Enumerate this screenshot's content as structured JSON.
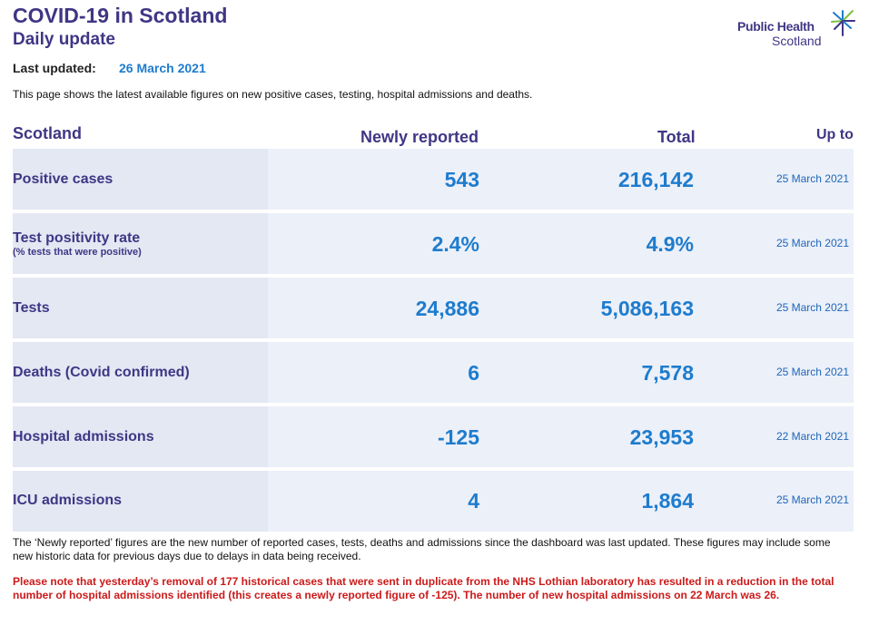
{
  "header": {
    "title": "COVID-19 in Scotland",
    "subtitle": "Daily update",
    "last_updated_label": "Last updated:",
    "last_updated_date": "26 March 2021",
    "intro": "This page shows the latest available figures on new positive cases, testing, hospital admissions and deaths."
  },
  "logo": {
    "line1": "Public Health",
    "line2": "Scotland",
    "icon": "thistle-star-icon"
  },
  "table": {
    "columns": {
      "region": "Scotland",
      "new": "Newly reported",
      "total": "Total",
      "upto": "Up to"
    },
    "rows": [
      {
        "label": "Positive cases",
        "sublabel": "",
        "new": "543",
        "total": "216,142",
        "upto": "25 March 2021"
      },
      {
        "label": "Test positivity rate",
        "sublabel": "(% tests that were positive)",
        "new": "2.4%",
        "total": "4.9%",
        "upto": "25 March 2021"
      },
      {
        "label": "Tests",
        "sublabel": "",
        "new": "24,886",
        "total": "5,086,163",
        "upto": "25 March 2021"
      },
      {
        "label": "Deaths (Covid confirmed)",
        "sublabel": "",
        "new": "6",
        "total": "7,578",
        "upto": "25 March 2021"
      },
      {
        "label": "Hospital admissions",
        "sublabel": "",
        "new": "-125",
        "total": "23,953",
        "upto": "22 March 2021"
      },
      {
        "label": "ICU admissions",
        "sublabel": "",
        "new": "4",
        "total": "1,864",
        "upto": "25 March 2021"
      }
    ]
  },
  "notes": {
    "newly_reported": "The ‘Newly reported’ figures are the new number of reported cases, tests, deaths and admissions since the dashboard was last updated. These figures may include some new historic data for previous days due to delays in data being received.",
    "warning": "Please note that yesterday’s removal of 177 historical cases that were sent in duplicate from the NHS Lothian laboratory has resulted in a reduction in the total number of hospital admissions identified (this creates a newly reported figure of -125). The number of new hospital admissions on 22 March was 26."
  },
  "colors": {
    "brand": "#3f3685",
    "accent": "#1e7ccd",
    "warning": "#cc1a1a",
    "row_bg": "#ecf0f9"
  }
}
